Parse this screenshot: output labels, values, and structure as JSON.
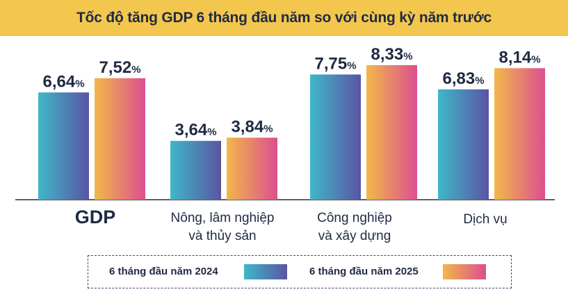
{
  "chart_data": {
    "type": "bar",
    "title": "Tốc độ tăng GDP 6 tháng đầu năm so với cùng kỳ năm trước",
    "categories": [
      [
        "GDP"
      ],
      [
        "Nông, lâm nghiệp",
        "và thủy sản"
      ],
      [
        "Công nghiệp",
        "và xây dựng"
      ],
      [
        "Dịch vụ"
      ]
    ],
    "series": [
      {
        "name": "6 tháng đầu năm 2024",
        "values": [
          6.64,
          3.64,
          7.75,
          6.83
        ],
        "labels": [
          "6,64",
          "3,64",
          "7,75",
          "6,83"
        ]
      },
      {
        "name": "6 tháng đầu năm 2025",
        "values": [
          7.52,
          3.84,
          8.33,
          8.14
        ],
        "labels": [
          "7,52",
          "3,84",
          "8,33",
          "8,14"
        ]
      }
    ],
    "unit": "%",
    "ylim": [
      0,
      9
    ],
    "grid": false,
    "legend_position": "bottom",
    "colors": {
      "s2024_start": "#3fb8c8",
      "s2024_end": "#5a54a4",
      "s2025_start": "#f2b84a",
      "s2025_end": "#dc4f8f",
      "text": "#1f2a44",
      "banner": "#f3c64d",
      "axis": "#2a2a2a"
    }
  }
}
